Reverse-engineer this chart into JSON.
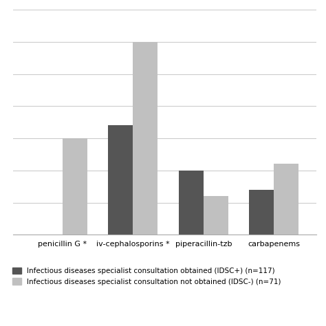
{
  "categories": [
    "penicillin G *",
    "iv-cephalosporins *",
    "piperacillin-tzb",
    "carbapenems"
  ],
  "idsc_plus": [
    0,
    34,
    20,
    14
  ],
  "idsc_minus": [
    30,
    60,
    12,
    22
  ],
  "idsc_plus_color": "#555555",
  "idsc_minus_color": "#c0c0c0",
  "ylim": [
    0,
    70
  ],
  "yticks": [
    0,
    10,
    20,
    30,
    40,
    50,
    60,
    70
  ],
  "legend_label_plus": "Infectious diseases specialist consultation obtained (IDSC+) (n=117)",
  "legend_label_minus": "Infectious diseases specialist consultation not obtained (IDSC-) (n=71)",
  "bar_width": 0.35,
  "background_color": "#ffffff",
  "grid_color": "#cccccc",
  "tick_fontsize": 8,
  "legend_fontsize": 7.5,
  "xlim_left": -0.7,
  "xlim_right": 3.6
}
